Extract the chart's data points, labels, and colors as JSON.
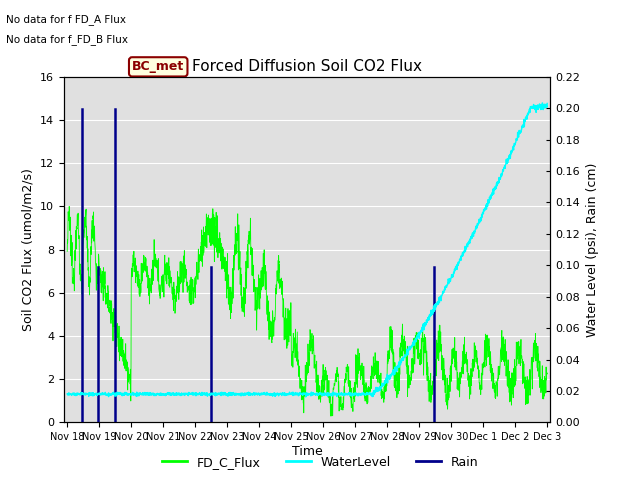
{
  "title": "Forced Diffusion Soil CO2 Flux",
  "ylabel_left": "Soil CO2 Flux (umol/m2/s)",
  "ylabel_right": "Water Level (psi), Rain (cm)",
  "xlabel": "Time",
  "ylim_left": [
    0,
    16
  ],
  "ylim_right": [
    0.0,
    0.22
  ],
  "yticks_left": [
    0,
    2,
    4,
    6,
    8,
    10,
    12,
    14,
    16
  ],
  "yticks_right": [
    0.0,
    0.02,
    0.04,
    0.06,
    0.08,
    0.1,
    0.12,
    0.14,
    0.16,
    0.18,
    0.2,
    0.22
  ],
  "no_data_text1": "No data for f FD_A Flux",
  "no_data_text2": "No data for f_FD_B Flux",
  "bc_met_label": "BC_met",
  "bg_color": "#e0e0e0",
  "fig_bg": "#ffffff",
  "legend_labels": [
    "FD_C_Flux",
    "WaterLevel",
    "Rain"
  ],
  "rain_days": [
    0.47,
    0.95,
    1.48,
    4.5,
    11.47
  ],
  "rain_tops": [
    14.5,
    7.2,
    14.5,
    7.2,
    7.2
  ]
}
